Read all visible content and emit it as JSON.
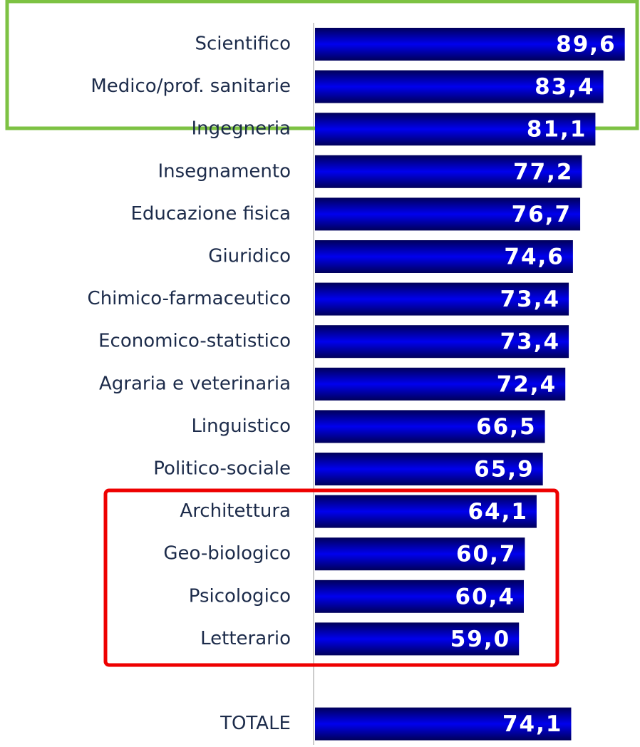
{
  "chart_data": {
    "type": "bar",
    "orientation": "horizontal",
    "categories": [
      "Scientifico",
      "Medico/prof. sanitarie",
      "Ingegneria",
      "Insegnamento",
      "Educazione fisica",
      "Giuridico",
      "Chimico-farmaceutico",
      "Economico-statistico",
      "Agraria e veterinaria",
      "Linguistico",
      "Politico-sociale",
      "Architettura",
      "Geo-biologico",
      "Psicologico",
      "Letterario",
      null,
      "TOTALE"
    ],
    "values": [
      89.6,
      83.4,
      81.1,
      77.2,
      76.7,
      74.6,
      73.4,
      73.4,
      72.4,
      66.5,
      65.9,
      64.1,
      60.7,
      60.4,
      59.0,
      null,
      74.1
    ],
    "value_labels": [
      "89,6",
      "83,4",
      "81,1",
      "77,2",
      "76,7",
      "74,6",
      "73,4",
      "73,4",
      "72,4",
      "66,5",
      "65,9",
      "64,1",
      "60,7",
      "60,4",
      "59,0",
      null,
      "74,1"
    ],
    "color": "#0000ee",
    "xlim": [
      0,
      94
    ]
  }
}
